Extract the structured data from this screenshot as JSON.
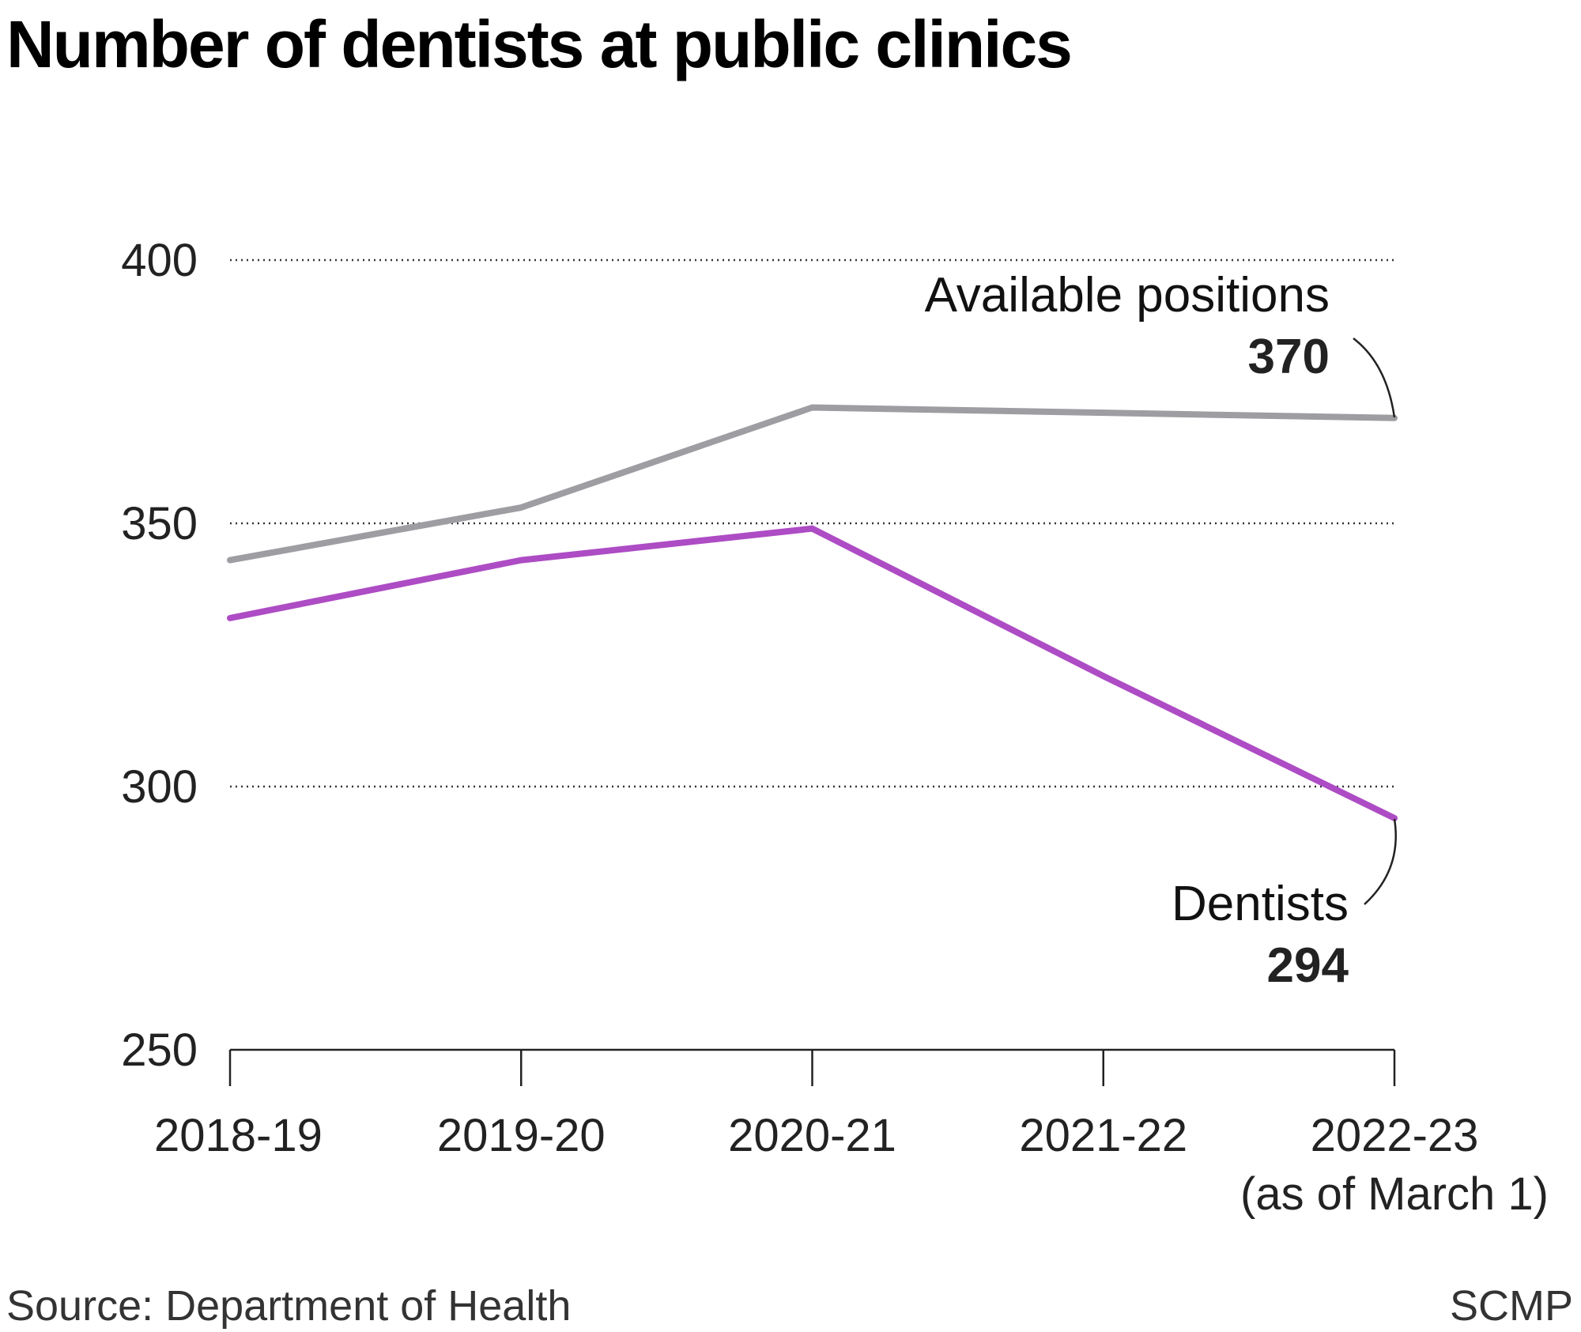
{
  "chart_data": {
    "type": "line",
    "title": "Number of dentists at public clinics",
    "categories": [
      "2018-19",
      "2019-20",
      "2020-21",
      "2021-22",
      "2022-23"
    ],
    "category_sublabels": [
      "",
      "",
      "",
      "",
      "(as of March 1)"
    ],
    "series": [
      {
        "name": "Available positions",
        "values": [
          343,
          353,
          372,
          371,
          370
        ],
        "color": "#9d9da2",
        "end_label": "370"
      },
      {
        "name": "Dentists",
        "values": [
          332,
          343,
          349,
          321,
          294
        ],
        "color": "#ad4cc4",
        "end_label": "294"
      }
    ],
    "ylim": [
      250,
      400
    ],
    "yticks": [
      "250",
      "300",
      "350",
      "400"
    ],
    "grid": true,
    "xlabel": "",
    "ylabel": ""
  },
  "footer": {
    "source": "Source: Department of Health",
    "brand": "SCMP"
  }
}
